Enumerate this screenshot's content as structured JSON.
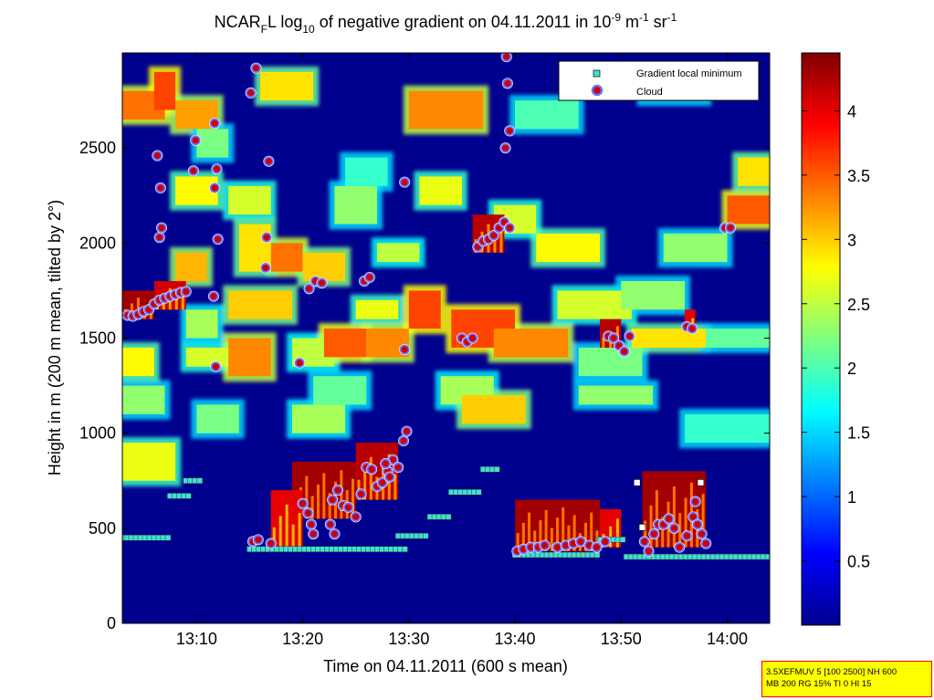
{
  "chart_data": {
    "type": "heatmap",
    "title": {
      "prefix": "NCAR",
      "prefix_sub": "F",
      "mid1": "L log",
      "mid1_sub": "10",
      "mid2": " of negative gradient on 04.11.2011 in 10",
      "unit_exp1": "-9",
      "unit_mid": " m",
      "unit_exp2": "-1",
      "unit_mid2": " sr",
      "unit_exp3": "-1"
    },
    "xlabel": "Time on 04.11.2011 (600 s mean)",
    "ylabel": "Height in m (200 m mean, tilted by 2°)",
    "x_range_minutes": [
      783,
      844
    ],
    "x_ticks": [
      {
        "t": 790,
        "label": "13:10"
      },
      {
        "t": 800,
        "label": "13:20"
      },
      {
        "t": 810,
        "label": "13:30"
      },
      {
        "t": 820,
        "label": "13:40"
      },
      {
        "t": 830,
        "label": "13:50"
      },
      {
        "t": 840,
        "label": "14:00"
      }
    ],
    "ylim": [
      0,
      3000
    ],
    "y_ticks": [
      {
        "v": 0,
        "label": "0"
      },
      {
        "v": 500,
        "label": "500"
      },
      {
        "v": 1000,
        "label": "1000"
      },
      {
        "v": 1500,
        "label": "1500"
      },
      {
        "v": 2000,
        "label": "2000"
      },
      {
        "v": 2500,
        "label": "2500"
      }
    ],
    "colorbar": {
      "range": [
        0,
        4.45
      ],
      "ticks": [
        {
          "v": 0.5,
          "label": "0.5"
        },
        {
          "v": 1,
          "label": "1"
        },
        {
          "v": 1.5,
          "label": "1.5"
        },
        {
          "v": 2,
          "label": "2"
        },
        {
          "v": 2.5,
          "label": "2.5"
        },
        {
          "v": 3,
          "label": "3"
        },
        {
          "v": 3.5,
          "label": "3.5"
        },
        {
          "v": 4,
          "label": "4"
        }
      ]
    },
    "legend": {
      "position": "top-right",
      "entries": [
        {
          "label": "Gradient local minimum",
          "marker": "square",
          "color": "#40e0d0"
        },
        {
          "label": "Cloud",
          "marker": "circle",
          "color": "#cc0000",
          "edge": "#6f6fff"
        }
      ]
    },
    "background_color": "#00008f",
    "blocks": [
      {
        "t0": 783,
        "t1": 788,
        "y0": 750,
        "y1": 950,
        "v": 2.7
      },
      {
        "t0": 783,
        "t1": 787,
        "y0": 1100,
        "y1": 1250,
        "v": 2.3
      },
      {
        "t0": 783,
        "t1": 786,
        "y0": 1300,
        "y1": 1450,
        "v": 2.8
      },
      {
        "t0": 783,
        "t1": 787,
        "y0": 2650,
        "y1": 2800,
        "v": 3.4
      },
      {
        "t0": 786,
        "t1": 788,
        "y0": 2700,
        "y1": 2900,
        "v": 3.6
      },
      {
        "t0": 788,
        "t1": 792,
        "y0": 2200,
        "y1": 2350,
        "v": 2.8
      },
      {
        "t0": 788,
        "t1": 792,
        "y0": 2600,
        "y1": 2750,
        "v": 3.2
      },
      {
        "t0": 789,
        "t1": 795,
        "y0": 1350,
        "y1": 1450,
        "v": 2.6
      },
      {
        "t0": 790,
        "t1": 794,
        "y0": 1000,
        "y1": 1150,
        "v": 2.2
      },
      {
        "t0": 789,
        "t1": 792,
        "y0": 1500,
        "y1": 1650,
        "v": 2.4
      },
      {
        "t0": 788,
        "t1": 791,
        "y0": 1800,
        "y1": 1950,
        "v": 3.1
      },
      {
        "t0": 793,
        "t1": 799,
        "y0": 1600,
        "y1": 1750,
        "v": 3.0
      },
      {
        "t0": 793,
        "t1": 797,
        "y0": 1300,
        "y1": 1500,
        "v": 3.3
      },
      {
        "t0": 793,
        "t1": 797,
        "y0": 2150,
        "y1": 2300,
        "v": 2.6
      },
      {
        "t0": 796,
        "t1": 801,
        "y0": 2750,
        "y1": 2900,
        "v": 2.9
      },
      {
        "t0": 797,
        "t1": 800,
        "y0": 1850,
        "y1": 2000,
        "v": 3.4
      },
      {
        "t0": 794,
        "t1": 797,
        "y0": 1850,
        "y1": 2100,
        "v": 2.9
      },
      {
        "t0": 799,
        "t1": 803,
        "y0": 1350,
        "y1": 1500,
        "v": 2.5
      },
      {
        "t0": 799,
        "t1": 804,
        "y0": 1000,
        "y1": 1150,
        "v": 2.4
      },
      {
        "t0": 801,
        "t1": 806,
        "y0": 1150,
        "y1": 1300,
        "v": 2.1
      },
      {
        "t0": 802,
        "t1": 806,
        "y0": 1400,
        "y1": 1550,
        "v": 3.5
      },
      {
        "t0": 800,
        "t1": 804,
        "y0": 1800,
        "y1": 1950,
        "v": 3.0
      },
      {
        "t0": 805,
        "t1": 809,
        "y0": 1600,
        "y1": 1700,
        "v": 2.7
      },
      {
        "t0": 806,
        "t1": 810,
        "y0": 1400,
        "y1": 1550,
        "v": 3.3
      },
      {
        "t0": 803,
        "t1": 807,
        "y0": 2100,
        "y1": 2300,
        "v": 2.3
      },
      {
        "t0": 807,
        "t1": 811,
        "y0": 1900,
        "y1": 2000,
        "v": 2.5
      },
      {
        "t0": 810,
        "t1": 813,
        "y0": 1550,
        "y1": 1750,
        "v": 3.6
      },
      {
        "t0": 810,
        "t1": 817,
        "y0": 2600,
        "y1": 2800,
        "v": 3.3
      },
      {
        "t0": 811,
        "t1": 815,
        "y0": 2200,
        "y1": 2350,
        "v": 2.7
      },
      {
        "t0": 813,
        "t1": 818,
        "y0": 1150,
        "y1": 1300,
        "v": 2.4
      },
      {
        "t0": 814,
        "t1": 820,
        "y0": 1450,
        "y1": 1650,
        "v": 3.6
      },
      {
        "t0": 818,
        "t1": 825,
        "y0": 1400,
        "y1": 1550,
        "v": 3.3
      },
      {
        "t0": 815,
        "t1": 821,
        "y0": 1050,
        "y1": 1200,
        "v": 3.0
      },
      {
        "t0": 818,
        "t1": 822,
        "y0": 2050,
        "y1": 2200,
        "v": 2.6
      },
      {
        "t0": 824,
        "t1": 831,
        "y0": 1600,
        "y1": 1750,
        "v": 2.6
      },
      {
        "t0": 822,
        "t1": 828,
        "y0": 1900,
        "y1": 2050,
        "v": 2.8
      },
      {
        "t0": 826,
        "t1": 832,
        "y0": 1300,
        "y1": 1450,
        "v": 2.2
      },
      {
        "t0": 826,
        "t1": 833,
        "y0": 1150,
        "y1": 1250,
        "v": 2.3
      },
      {
        "t0": 830,
        "t1": 836,
        "y0": 1650,
        "y1": 1800,
        "v": 2.3
      },
      {
        "t0": 831,
        "t1": 838,
        "y0": 1450,
        "y1": 1550,
        "v": 2.9
      },
      {
        "t0": 834,
        "t1": 840,
        "y0": 1900,
        "y1": 2050,
        "v": 2.3
      },
      {
        "t0": 840,
        "t1": 844,
        "y0": 2100,
        "y1": 2250,
        "v": 3.5
      },
      {
        "t0": 841,
        "t1": 844,
        "y0": 2300,
        "y1": 2450,
        "v": 2.9
      },
      {
        "t0": 838,
        "t1": 844,
        "y0": 1450,
        "y1": 1550,
        "v": 2.1
      },
      {
        "t0": 836,
        "t1": 844,
        "y0": 950,
        "y1": 1100,
        "v": 1.9
      },
      {
        "t0": 832,
        "t1": 838,
        "y0": 2750,
        "y1": 2900,
        "v": 1.8
      },
      {
        "t0": 820,
        "t1": 826,
        "y0": 2600,
        "y1": 2750,
        "v": 2.0
      },
      {
        "t0": 804,
        "t1": 808,
        "y0": 2300,
        "y1": 2450,
        "v": 1.9
      },
      {
        "t0": 790,
        "t1": 793,
        "y0": 2450,
        "y1": 2600,
        "v": 2.2
      }
    ],
    "dense": [
      {
        "t0": 783,
        "t1": 786,
        "y0": 1600,
        "y1": 1750,
        "v": 4.3
      },
      {
        "t0": 786,
        "t1": 789,
        "y0": 1650,
        "y1": 1800,
        "v": 4.1
      },
      {
        "t0": 799,
        "t1": 805,
        "y0": 550,
        "y1": 850,
        "v": 4.3
      },
      {
        "t0": 805,
        "t1": 809,
        "y0": 650,
        "y1": 950,
        "v": 4.2
      },
      {
        "t0": 797,
        "t1": 800,
        "y0": 400,
        "y1": 700,
        "v": 4.0
      },
      {
        "t0": 816,
        "t1": 819,
        "y0": 1950,
        "y1": 2150,
        "v": 4.2
      },
      {
        "t0": 820,
        "t1": 828,
        "y0": 380,
        "y1": 650,
        "v": 4.3
      },
      {
        "t0": 828,
        "t1": 830,
        "y0": 400,
        "y1": 600,
        "v": 4.0
      },
      {
        "t0": 832,
        "t1": 838,
        "y0": 400,
        "y1": 800,
        "v": 4.3
      },
      {
        "t0": 828,
        "t1": 830,
        "y0": 1450,
        "y1": 1600,
        "v": 4.2
      },
      {
        "t0": 836,
        "t1": 837,
        "y0": 1550,
        "y1": 1650,
        "v": 4.0
      }
    ],
    "minima_segments": [
      {
        "t0": 783.0,
        "t1": 787.5,
        "y": 450
      },
      {
        "t0": 787.5,
        "t1": 789.5,
        "y": 670
      },
      {
        "t0": 789.0,
        "t1": 790.5,
        "y": 750
      },
      {
        "t0": 795.0,
        "t1": 810.0,
        "y": 390
      },
      {
        "t0": 809.0,
        "t1": 812.0,
        "y": 460
      },
      {
        "t0": 812.0,
        "t1": 814.0,
        "y": 560
      },
      {
        "t0": 814.0,
        "t1": 817.0,
        "y": 690
      },
      {
        "t0": 817.0,
        "t1": 818.5,
        "y": 810
      },
      {
        "t0": 820.0,
        "t1": 828.0,
        "y": 360
      },
      {
        "t0": 828.0,
        "t1": 830.5,
        "y": 440
      },
      {
        "t0": 830.5,
        "t1": 844.0,
        "y": 350
      }
    ],
    "minima_points": [
      {
        "t": 831.5,
        "y": 740
      },
      {
        "t": 837.5,
        "y": 740
      },
      {
        "t": 832.0,
        "y": 505
      }
    ],
    "clouds": [
      {
        "t": 783.5,
        "y": 1620
      },
      {
        "t": 784.0,
        "y": 1615
      },
      {
        "t": 784.5,
        "y": 1625
      },
      {
        "t": 785.0,
        "y": 1640
      },
      {
        "t": 785.5,
        "y": 1650
      },
      {
        "t": 786.0,
        "y": 1680
      },
      {
        "t": 786.5,
        "y": 1700
      },
      {
        "t": 787.0,
        "y": 1710
      },
      {
        "t": 787.5,
        "y": 1720
      },
      {
        "t": 788.0,
        "y": 1730
      },
      {
        "t": 788.5,
        "y": 1740
      },
      {
        "t": 789.0,
        "y": 1745
      },
      {
        "t": 786.5,
        "y": 2030
      },
      {
        "t": 786.7,
        "y": 2080
      },
      {
        "t": 786.6,
        "y": 2290
      },
      {
        "t": 786.3,
        "y": 2460
      },
      {
        "t": 789.7,
        "y": 2380
      },
      {
        "t": 789.9,
        "y": 2540
      },
      {
        "t": 791.7,
        "y": 2290
      },
      {
        "t": 791.9,
        "y": 2390
      },
      {
        "t": 791.7,
        "y": 2630
      },
      {
        "t": 792.0,
        "y": 2020
      },
      {
        "t": 791.6,
        "y": 1720
      },
      {
        "t": 791.8,
        "y": 1350
      },
      {
        "t": 795.1,
        "y": 2790
      },
      {
        "t": 795.6,
        "y": 2920
      },
      {
        "t": 796.8,
        "y": 2430
      },
      {
        "t": 796.6,
        "y": 2030
      },
      {
        "t": 796.5,
        "y": 1870
      },
      {
        "t": 795.3,
        "y": 430
      },
      {
        "t": 795.8,
        "y": 440
      },
      {
        "t": 797.0,
        "y": 420
      },
      {
        "t": 799.7,
        "y": 1370
      },
      {
        "t": 800.0,
        "y": 630
      },
      {
        "t": 800.5,
        "y": 580
      },
      {
        "t": 800.8,
        "y": 520
      },
      {
        "t": 801.0,
        "y": 470
      },
      {
        "t": 800.6,
        "y": 1760
      },
      {
        "t": 801.2,
        "y": 1800
      },
      {
        "t": 801.8,
        "y": 1790
      },
      {
        "t": 802.8,
        "y": 650
      },
      {
        "t": 803.3,
        "y": 700
      },
      {
        "t": 803.8,
        "y": 620
      },
      {
        "t": 804.3,
        "y": 610
      },
      {
        "t": 802.6,
        "y": 520
      },
      {
        "t": 803.0,
        "y": 470
      },
      {
        "t": 805.0,
        "y": 560
      },
      {
        "t": 805.5,
        "y": 680
      },
      {
        "t": 806.0,
        "y": 820
      },
      {
        "t": 806.5,
        "y": 810
      },
      {
        "t": 805.8,
        "y": 1800
      },
      {
        "t": 806.3,
        "y": 1820
      },
      {
        "t": 807.0,
        "y": 720
      },
      {
        "t": 807.5,
        "y": 740
      },
      {
        "t": 808.0,
        "y": 800
      },
      {
        "t": 808.5,
        "y": 860
      },
      {
        "t": 809.0,
        "y": 820
      },
      {
        "t": 809.5,
        "y": 960
      },
      {
        "t": 809.8,
        "y": 1010
      },
      {
        "t": 809.6,
        "y": 1440
      },
      {
        "t": 809.6,
        "y": 2320
      },
      {
        "t": 807.8,
        "y": 840
      },
      {
        "t": 808.2,
        "y": 770
      },
      {
        "t": 815.0,
        "y": 1500
      },
      {
        "t": 815.5,
        "y": 1480
      },
      {
        "t": 816.0,
        "y": 1500
      },
      {
        "t": 816.5,
        "y": 1980
      },
      {
        "t": 817.0,
        "y": 2010
      },
      {
        "t": 817.5,
        "y": 2020
      },
      {
        "t": 818.0,
        "y": 2040
      },
      {
        "t": 818.5,
        "y": 2080
      },
      {
        "t": 819.0,
        "y": 2110
      },
      {
        "t": 819.5,
        "y": 2080
      },
      {
        "t": 819.1,
        "y": 2500
      },
      {
        "t": 819.5,
        "y": 2590
      },
      {
        "t": 819.3,
        "y": 2840
      },
      {
        "t": 819.2,
        "y": 2980
      },
      {
        "t": 820.2,
        "y": 380
      },
      {
        "t": 820.8,
        "y": 390
      },
      {
        "t": 821.5,
        "y": 400
      },
      {
        "t": 822.2,
        "y": 400
      },
      {
        "t": 822.8,
        "y": 410
      },
      {
        "t": 824.0,
        "y": 400
      },
      {
        "t": 824.8,
        "y": 410
      },
      {
        "t": 825.5,
        "y": 420
      },
      {
        "t": 826.2,
        "y": 430
      },
      {
        "t": 827.0,
        "y": 410
      },
      {
        "t": 827.7,
        "y": 400
      },
      {
        "t": 828.5,
        "y": 430
      },
      {
        "t": 828.8,
        "y": 1510
      },
      {
        "t": 829.3,
        "y": 1500
      },
      {
        "t": 829.8,
        "y": 1460
      },
      {
        "t": 830.3,
        "y": 1430
      },
      {
        "t": 830.8,
        "y": 1510
      },
      {
        "t": 832.2,
        "y": 430
      },
      {
        "t": 832.6,
        "y": 380
      },
      {
        "t": 833.1,
        "y": 470
      },
      {
        "t": 833.5,
        "y": 520
      },
      {
        "t": 834.0,
        "y": 520
      },
      {
        "t": 834.5,
        "y": 550
      },
      {
        "t": 835.0,
        "y": 500
      },
      {
        "t": 835.5,
        "y": 400
      },
      {
        "t": 836.2,
        "y": 460
      },
      {
        "t": 836.8,
        "y": 560
      },
      {
        "t": 837.0,
        "y": 640
      },
      {
        "t": 837.2,
        "y": 520
      },
      {
        "t": 837.6,
        "y": 470
      },
      {
        "t": 838.0,
        "y": 420
      },
      {
        "t": 836.2,
        "y": 1560
      },
      {
        "t": 836.7,
        "y": 1550
      },
      {
        "t": 839.8,
        "y": 2080
      },
      {
        "t": 840.3,
        "y": 2080
      }
    ]
  },
  "info_box": {
    "line1": "3.5XEFMUV 5 [100 2500] NH 600",
    "line2": "MB 200 RG 15% TI 0 HI 15"
  }
}
